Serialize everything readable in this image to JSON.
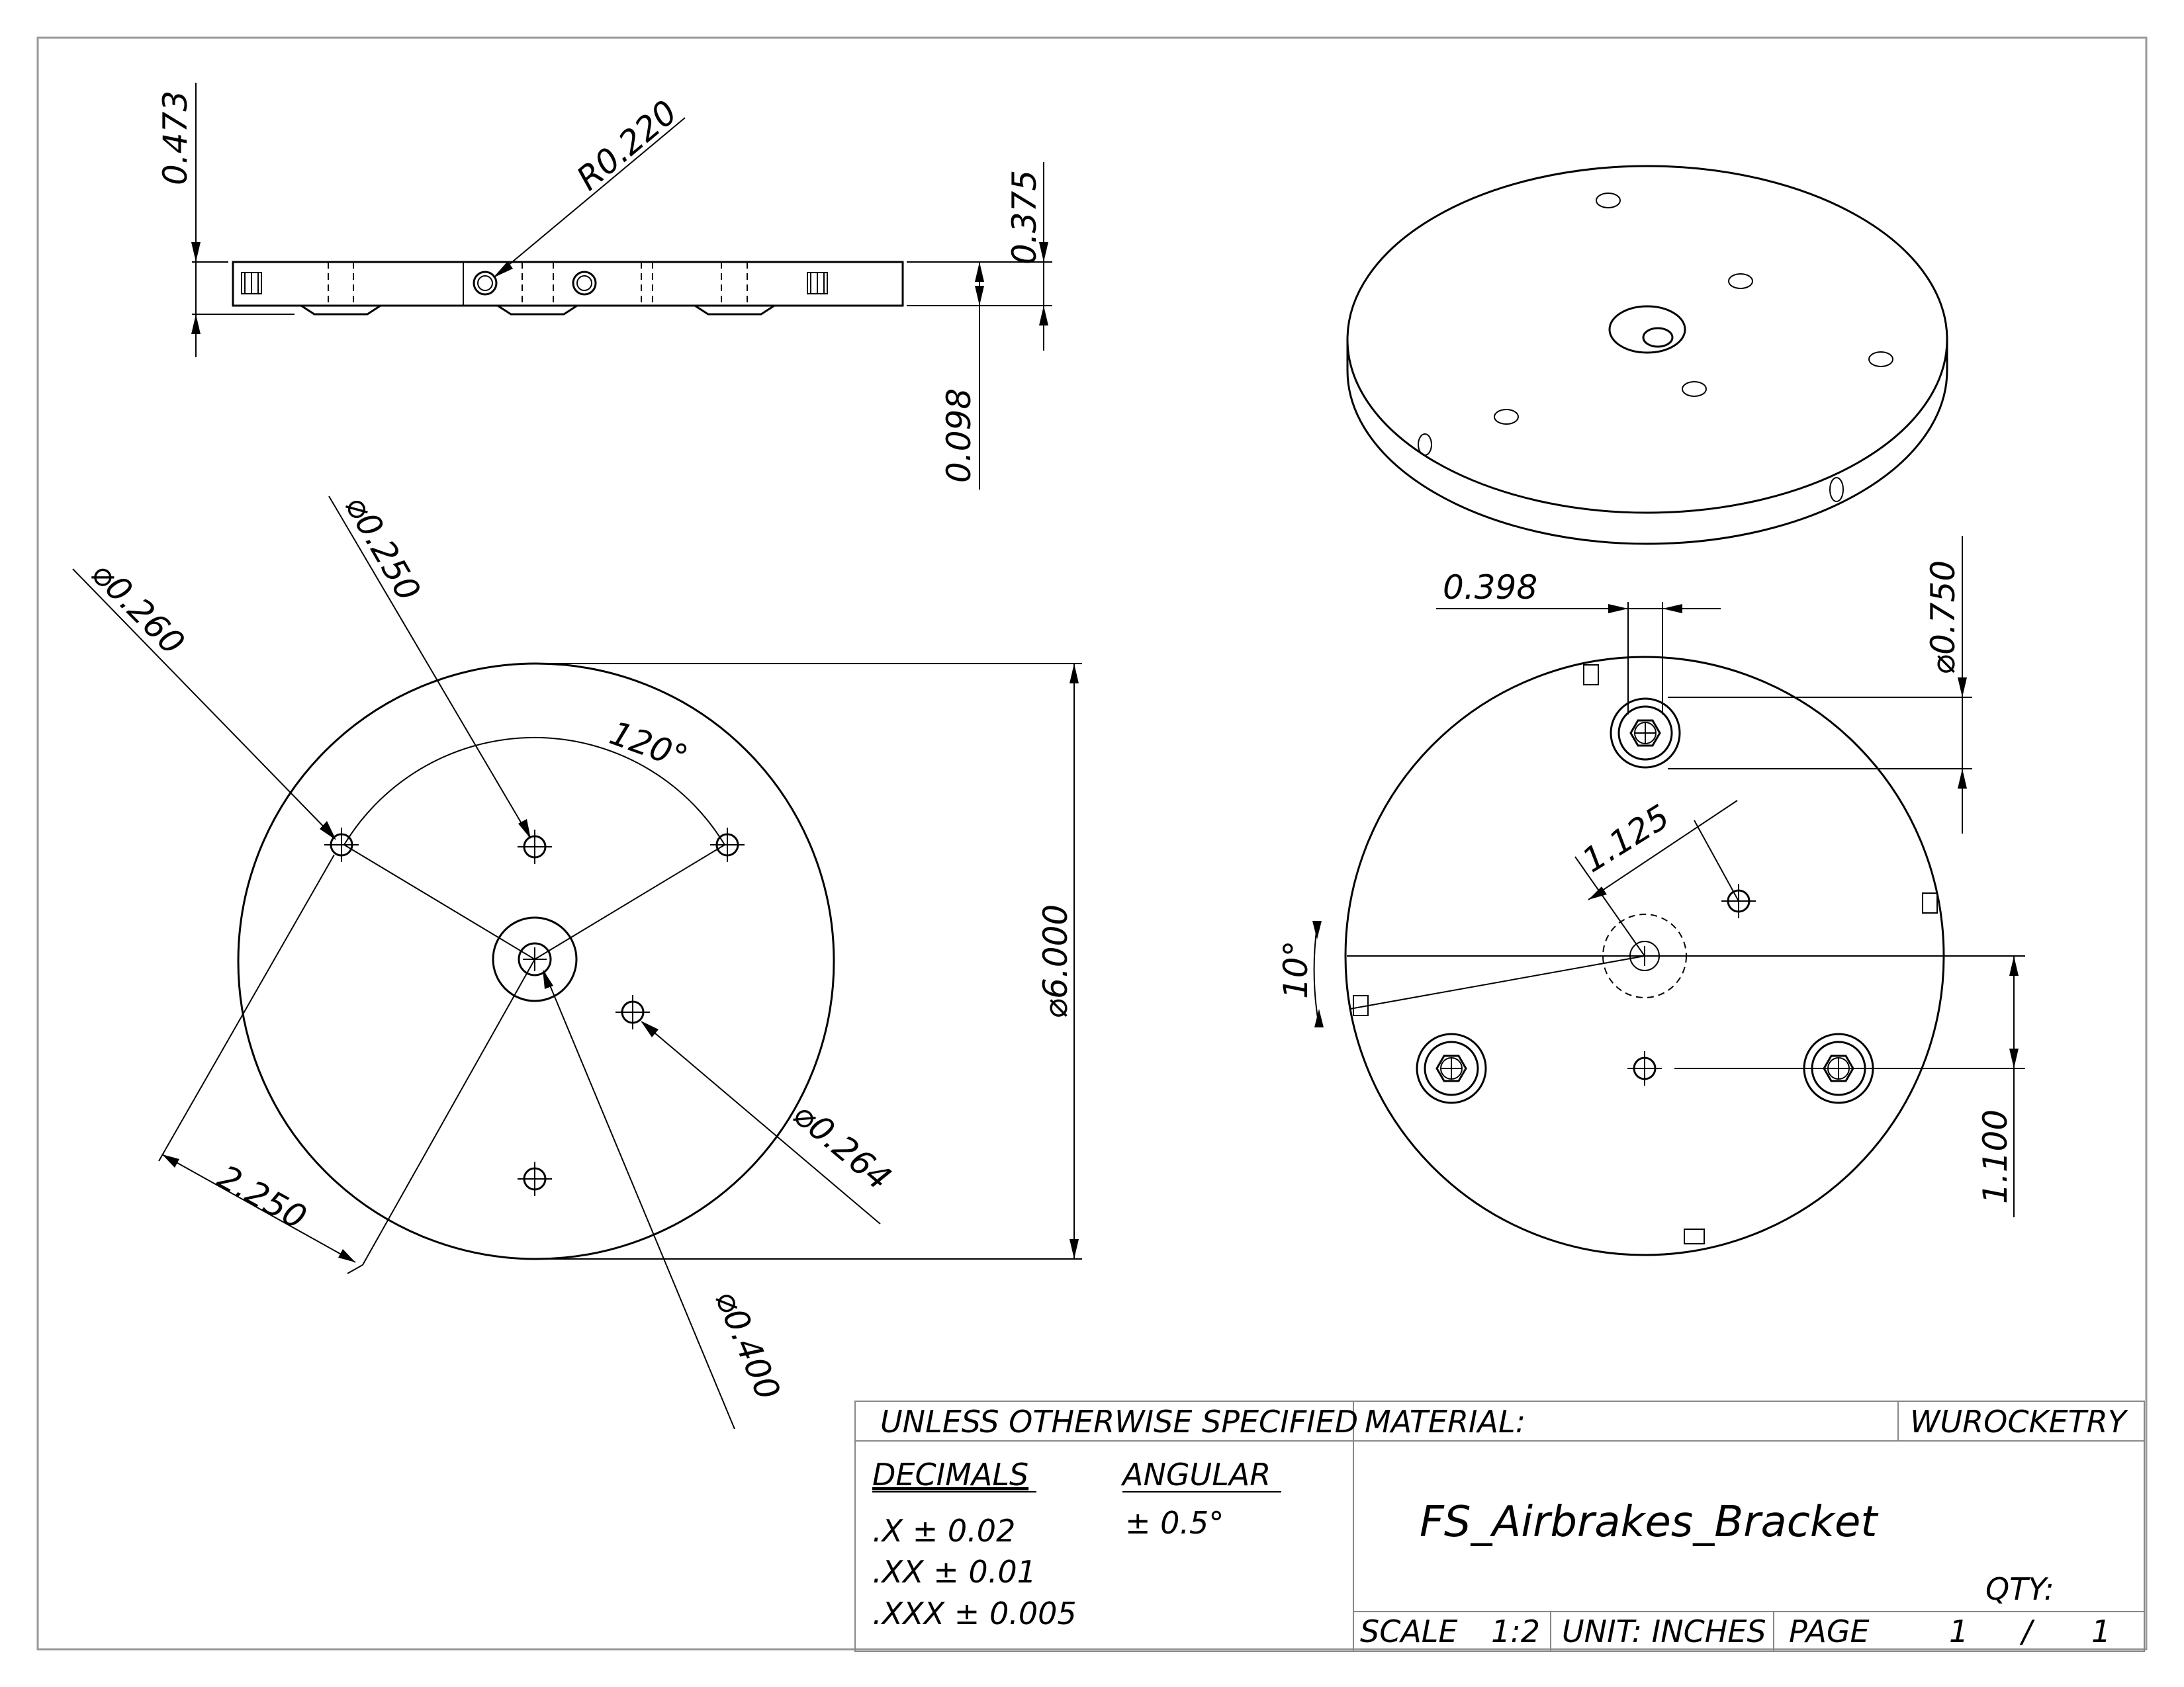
{
  "dimensions": {
    "top_view": {
      "height_0473": "0.473",
      "radius_r0220": "R0.220",
      "thickness_0375": "0.375",
      "offset_0098": "0.098"
    },
    "front_view": {
      "dia_0260": "⌀0.260",
      "dia_0250": "⌀0.250",
      "angle_120": "120°",
      "dia_6000": "⌀6.000",
      "dia_0264": "⌀0.264",
      "dist_2250": "2.250",
      "dia_0400": "⌀0.400"
    },
    "back_view": {
      "width_0398": "0.398",
      "dia_0750": "⌀0.750",
      "dist_1125": "1.125",
      "angle_10": "10°",
      "dist_1100": "1.100"
    }
  },
  "title_block": {
    "unless_specified": "UNLESS OTHERWISE SPECIFIED",
    "material_label": "MATERIAL:",
    "company": "WUROCKETRY",
    "decimals_label": "DECIMALS",
    "angular_label": "ANGULAR",
    "tol_x": ".X ± 0.02",
    "tol_xx": ".XX ± 0.01",
    "tol_xxx": ".XXX ± 0.005",
    "tol_angular": "± 0.5°",
    "part_name": "FS_Airbrakes_Bracket",
    "qty_label": "QTY:",
    "scale_label": "SCALE",
    "scale_value": "1:2",
    "unit_label": "UNIT: INCHES",
    "page_label": "PAGE",
    "page_current": "1",
    "page_sep": "/",
    "page_total": "1"
  }
}
